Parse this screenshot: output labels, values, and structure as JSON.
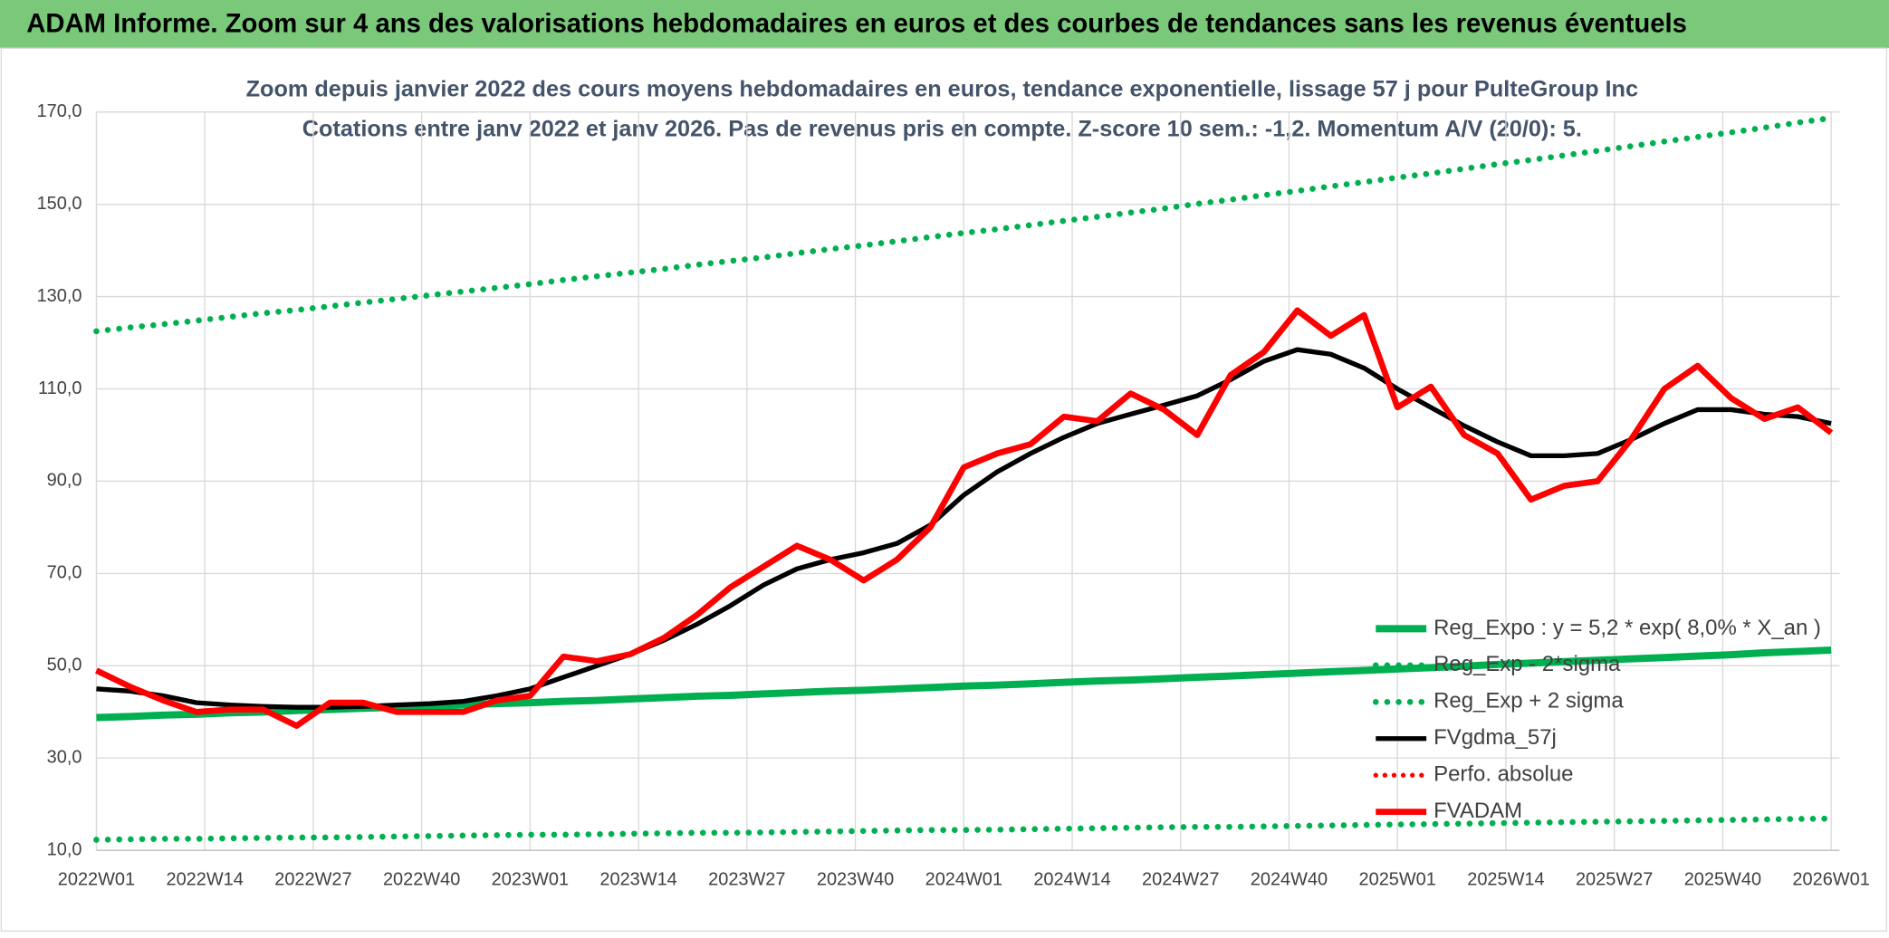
{
  "chart_data": {
    "type": "line",
    "title": "ADAM Informe. Zoom sur 4 ans des valorisations hebdomadaires en euros et des courbes de tendances sans les revenus éventuels",
    "subtitle": [
      "Zoom depuis janvier 2022 des cours moyens hebdomadaires en euros, tendance exponentielle, lissage 57 j pour PulteGroup Inc",
      "Cotations entre janv 2022 et janv 2026. Pas de revenus pris en compte. Z-score 10 sem.: -1,2. Momentum A/V (20/0): 5."
    ],
    "x": [
      0,
      4,
      8,
      12,
      16,
      20,
      24,
      28,
      32,
      36,
      40,
      44,
      48,
      52,
      56,
      60,
      64,
      68,
      72,
      76,
      80,
      84,
      88,
      92,
      96,
      100,
      104,
      108,
      112,
      116,
      120,
      124,
      128,
      132,
      136,
      140,
      144,
      148,
      152,
      156,
      160,
      164,
      168,
      172,
      176,
      180,
      184,
      188,
      192,
      196,
      200,
      204,
      208
    ],
    "xlim": [
      0,
      208
    ],
    "xticks": [
      {
        "value": 0,
        "label": "2022W01"
      },
      {
        "value": 13,
        "label": "2022W14"
      },
      {
        "value": 26,
        "label": "2022W27"
      },
      {
        "value": 39,
        "label": "2022W40"
      },
      {
        "value": 52,
        "label": "2023W01"
      },
      {
        "value": 65,
        "label": "2023W14"
      },
      {
        "value": 78,
        "label": "2023W27"
      },
      {
        "value": 91,
        "label": "2023W40"
      },
      {
        "value": 104,
        "label": "2024W01"
      },
      {
        "value": 117,
        "label": "2024W14"
      },
      {
        "value": 130,
        "label": "2024W27"
      },
      {
        "value": 143,
        "label": "2024W40"
      },
      {
        "value": 156,
        "label": "2025W01"
      },
      {
        "value": 169,
        "label": "2025W14"
      },
      {
        "value": 182,
        "label": "2025W27"
      },
      {
        "value": 195,
        "label": "2025W40"
      },
      {
        "value": 208,
        "label": "2026W01"
      }
    ],
    "ylim": [
      10,
      170
    ],
    "yticks": [
      {
        "value": 10,
        "label": "10,0"
      },
      {
        "value": 30,
        "label": "30,0"
      },
      {
        "value": 50,
        "label": "50,0"
      },
      {
        "value": 70,
        "label": "70,0"
      },
      {
        "value": 90,
        "label": "90,0"
      },
      {
        "value": 110,
        "label": "110,0"
      },
      {
        "value": 130,
        "label": "130,0"
      },
      {
        "value": 150,
        "label": "150,0"
      },
      {
        "value": 170,
        "label": "170,0"
      }
    ],
    "grid": true,
    "legend": "lower right",
    "series": [
      {
        "name": "Reg_Expo : y = 5,2 * exp( 8,0% *  X_an )",
        "color": "#00b050",
        "dash": "solid",
        "width": 6,
        "values": [
          38.8,
          39.0,
          39.3,
          39.5,
          39.8,
          40.0,
          40.3,
          40.5,
          40.8,
          41.0,
          41.3,
          41.5,
          41.8,
          42.0,
          42.3,
          42.5,
          42.8,
          43.1,
          43.4,
          43.6,
          43.9,
          44.2,
          44.5,
          44.7,
          45.0,
          45.3,
          45.6,
          45.8,
          46.1,
          46.4,
          46.7,
          46.9,
          47.2,
          47.5,
          47.8,
          48.1,
          48.4,
          48.7,
          49.0,
          49.3,
          49.6,
          49.9,
          50.3,
          50.6,
          50.9,
          51.2,
          51.5,
          51.8,
          52.1,
          52.4,
          52.8,
          53.1,
          53.4
        ]
      },
      {
        "name": "Reg_Exp - 2*sigma",
        "color": "#00b050",
        "dash": "dotted",
        "width": 5,
        "values": [
          12.3,
          12.4,
          12.5,
          12.5,
          12.6,
          12.7,
          12.8,
          12.8,
          12.9,
          13.0,
          13.1,
          13.2,
          13.3,
          13.4,
          13.4,
          13.5,
          13.6,
          13.7,
          13.8,
          13.8,
          13.9,
          14.0,
          14.1,
          14.2,
          14.3,
          14.4,
          14.4,
          14.5,
          14.6,
          14.7,
          14.8,
          14.9,
          15.0,
          15.1,
          15.1,
          15.2,
          15.3,
          15.4,
          15.5,
          15.6,
          15.7,
          15.8,
          15.9,
          16.0,
          16.1,
          16.2,
          16.3,
          16.4,
          16.5,
          16.6,
          16.7,
          16.8,
          16.9
        ]
      },
      {
        "name": "Reg_Exp + 2 sigma",
        "color": "#00b050",
        "dash": "dotted",
        "width": 5,
        "values": [
          122.5,
          123.3,
          124.0,
          124.8,
          125.6,
          126.4,
          127.1,
          127.9,
          128.7,
          129.5,
          130.3,
          131.1,
          131.9,
          132.7,
          133.6,
          134.4,
          135.2,
          136.0,
          136.9,
          137.7,
          138.5,
          139.4,
          140.3,
          141.1,
          142.0,
          142.9,
          143.8,
          144.6,
          145.5,
          146.4,
          147.3,
          148.2,
          149.1,
          150.1,
          151.0,
          152.0,
          152.9,
          153.9,
          154.8,
          155.8,
          156.7,
          157.7,
          158.7,
          159.6,
          160.6,
          161.6,
          162.6,
          163.6,
          164.6,
          165.6,
          166.6,
          167.7,
          168.7
        ]
      },
      {
        "name": "FVgdma_57j",
        "color": "#000000",
        "dash": "solid",
        "width": 4,
        "values": [
          45,
          44.5,
          43.5,
          42,
          41.5,
          41.2,
          41,
          41,
          41.2,
          41.5,
          41.8,
          42.3,
          43.5,
          45,
          47.5,
          50,
          52.5,
          55.5,
          59,
          63,
          67.5,
          71,
          73,
          74.5,
          76.5,
          80.5,
          87,
          92,
          96,
          99.5,
          102.5,
          104.5,
          106.5,
          108.5,
          112,
          116,
          118.5,
          117.5,
          114.5,
          110,
          106,
          102,
          98.5,
          95.5,
          95.5,
          96,
          99,
          102.5,
          105.5,
          105.5,
          104.5,
          104,
          102.5
        ]
      },
      {
        "name": "Perfo. absolue",
        "color": "#ff0000",
        "dash": "dotted",
        "width": 4,
        "values": [
          null,
          null,
          null,
          null,
          null,
          null,
          null,
          null,
          null,
          null,
          null,
          null,
          null,
          null,
          null,
          null,
          null,
          null,
          null,
          null,
          null,
          null,
          null,
          null,
          null,
          null,
          null,
          null,
          null,
          null,
          null,
          null,
          null,
          null,
          null,
          null,
          null,
          null,
          null,
          null,
          null,
          null,
          null,
          null,
          null,
          null,
          null,
          null,
          null,
          null,
          null,
          null,
          null
        ]
      },
      {
        "name": "FVADAM",
        "color": "#ff0000",
        "dash": "solid",
        "width": 5,
        "values": [
          49,
          45.5,
          42.5,
          40,
          40.5,
          40.5,
          37,
          42,
          42,
          40,
          40,
          40,
          42.5,
          43.5,
          52,
          51,
          52.5,
          56,
          61,
          67,
          71.5,
          76,
          73,
          68.5,
          73,
          80,
          93,
          96,
          98,
          104,
          103,
          109,
          105.5,
          100,
          113,
          118,
          127,
          121.5,
          126,
          106,
          110.5,
          100,
          96,
          86,
          89,
          90,
          99,
          110,
          115,
          108,
          103.5,
          106,
          100.5
        ]
      }
    ]
  }
}
